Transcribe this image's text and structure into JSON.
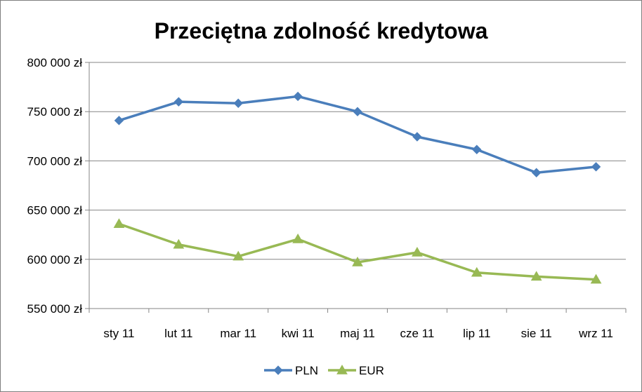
{
  "chart_data": {
    "type": "line",
    "title": "Przeciętna zdolność kredytowa",
    "xlabel": "",
    "ylabel": "",
    "categories": [
      "sty 11",
      "lut 11",
      "mar 11",
      "kwi 11",
      "maj 11",
      "cze 11",
      "lip 11",
      "sie 11",
      "wrz 11"
    ],
    "y_ticks": [
      "550 000 zł",
      "600 000 zł",
      "650 000 zł",
      "700 000 zł",
      "750 000 zł",
      "800 000 zł"
    ],
    "ylim": [
      550000,
      800000
    ],
    "grid": true,
    "legend_position": "bottom",
    "series": [
      {
        "name": "PLN",
        "color": "#4a7ebb",
        "marker": "diamond",
        "values": [
          741000,
          760000,
          758500,
          765500,
          750000,
          724500,
          711500,
          688000,
          694000
        ]
      },
      {
        "name": "EUR",
        "color": "#98b954",
        "marker": "triangle",
        "values": [
          636000,
          615000,
          603000,
          620500,
          597000,
          607000,
          586500,
          582500,
          579500
        ]
      }
    ]
  }
}
